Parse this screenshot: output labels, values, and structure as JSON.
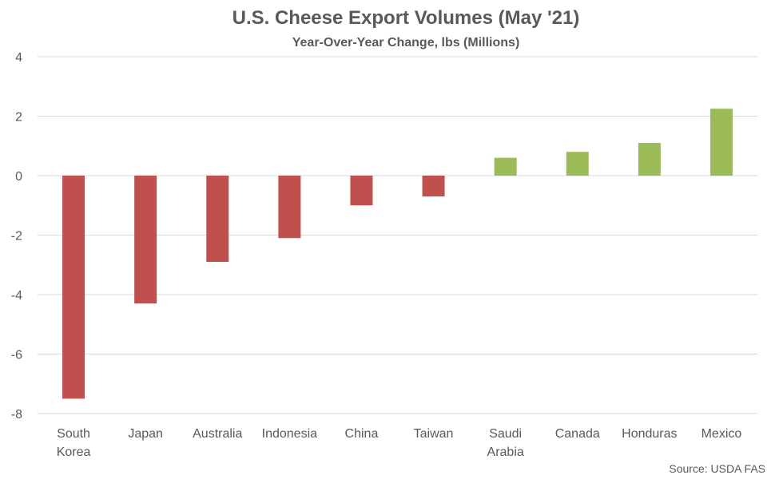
{
  "chart_data": {
    "type": "bar",
    "title": "U.S. Cheese Export Volumes (May '21)",
    "subtitle": "Year-Over-Year Change, lbs (Millions)",
    "xlabel": "",
    "ylabel": "",
    "categories": [
      "South Korea",
      "Japan",
      "Australia",
      "Indonesia",
      "China",
      "Taiwan",
      "Saudi Arabia",
      "Canada",
      "Honduras",
      "Mexico"
    ],
    "category_lines": [
      [
        "South",
        "Korea"
      ],
      [
        "Japan"
      ],
      [
        "Australia"
      ],
      [
        "Indonesia"
      ],
      [
        "China"
      ],
      [
        "Taiwan"
      ],
      [
        "Saudi",
        "Arabia"
      ],
      [
        "Canada"
      ],
      [
        "Honduras"
      ],
      [
        "Mexico"
      ]
    ],
    "values": [
      -7.5,
      -4.3,
      -2.9,
      -2.1,
      -1.0,
      -0.7,
      0.6,
      0.8,
      1.1,
      2.25
    ],
    "ylim": [
      -8,
      4
    ],
    "yticks": [
      -8,
      -6,
      -4,
      -2,
      0,
      2,
      4
    ],
    "ytick_labels": [
      "-8",
      "-6",
      "-4",
      "-2",
      "0",
      "2",
      "4"
    ],
    "grid": true,
    "legend": "none",
    "colors": {
      "negative": "#c0504d",
      "positive": "#9bbb59",
      "grid": "#d9d9d9",
      "text": "#595959"
    },
    "source": "Source: USDA FAS"
  }
}
